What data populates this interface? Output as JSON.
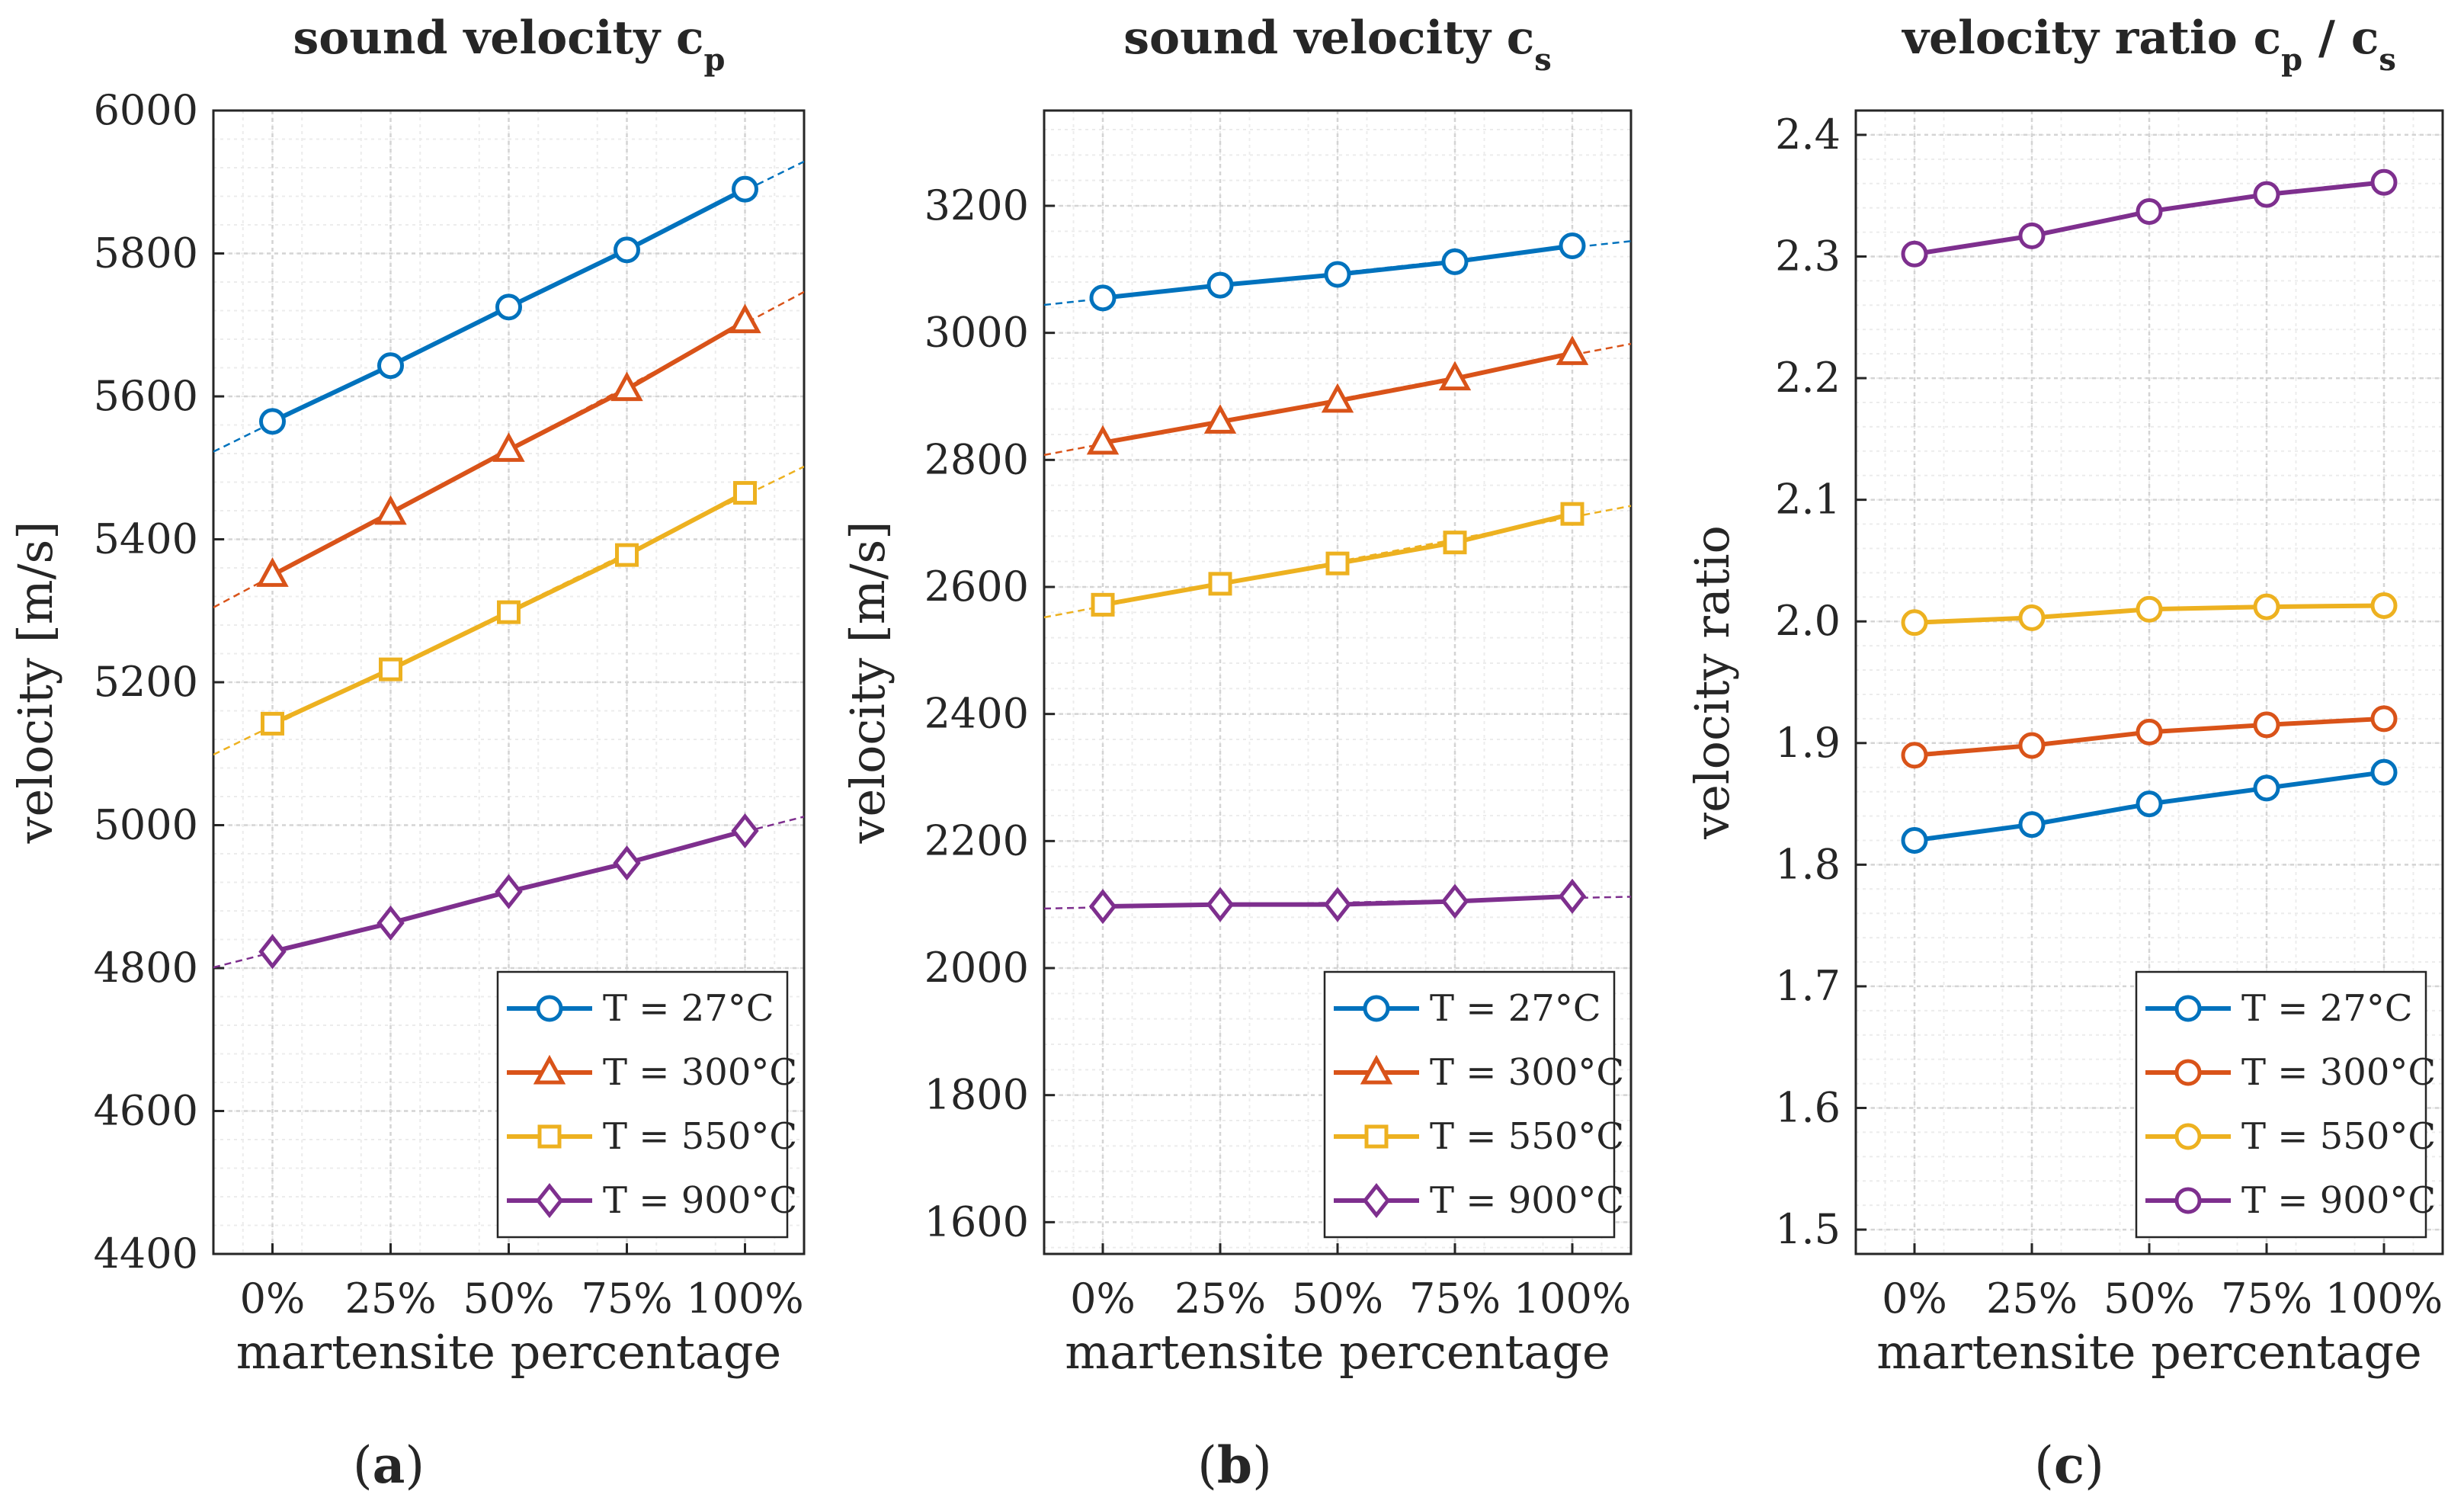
{
  "colors": {
    "T27": "#0072BD",
    "T300": "#D95319",
    "T550": "#EDB120",
    "T900": "#7E2F8E",
    "axis": "#262626",
    "grid_major": "#d4d4d4",
    "grid_minor": "#ececec"
  },
  "chart_data": [
    {
      "type": "line",
      "panel_label": "a",
      "title": "sound velocity c",
      "title_sub": "p",
      "xlabel": "martensite percentage",
      "ylabel": "velocity [m/s]",
      "categories": [
        "0%",
        "25%",
        "50%",
        "75%",
        "100%"
      ],
      "ylim": [
        4400,
        6000
      ],
      "yticks": [
        4400,
        4600,
        4800,
        5000,
        5200,
        5400,
        5600,
        5800,
        6000
      ],
      "ytick_labels": [
        "4400",
        "4600",
        "4800",
        "5000",
        "5200",
        "5400",
        "5600",
        "5800",
        "6000"
      ],
      "grid": true,
      "minor_grid": true,
      "trend_lines": true,
      "legend_loc": "bottom-right",
      "series": [
        {
          "name": "T = 27°C",
          "marker": "circle",
          "color_key": "T27",
          "values": [
            5565,
            5643,
            5725,
            5805,
            5890
          ]
        },
        {
          "name": "T = 300°C",
          "marker": "triangle",
          "color_key": "T300",
          "values": [
            5350,
            5437,
            5525,
            5610,
            5705
          ]
        },
        {
          "name": "T = 550°C",
          "marker": "square",
          "color_key": "T550",
          "values": [
            5142,
            5218,
            5298,
            5378,
            5465
          ]
        },
        {
          "name": "T = 900°C",
          "marker": "diamond",
          "color_key": "T900",
          "values": [
            4823,
            4863,
            4907,
            4947,
            4992
          ]
        }
      ]
    },
    {
      "type": "line",
      "panel_label": "b",
      "title": "sound velocity c",
      "title_sub": "s",
      "xlabel": "martensite percentage",
      "ylabel": "velocity [m/s]",
      "categories": [
        "0%",
        "25%",
        "50%",
        "75%",
        "100%"
      ],
      "ylim": [
        1550,
        3350
      ],
      "yticks": [
        1600,
        1800,
        2000,
        2200,
        2400,
        2600,
        2800,
        3000,
        3200
      ],
      "ytick_labels": [
        "1600",
        "1800",
        "2000",
        "2200",
        "2400",
        "2600",
        "2800",
        "3000",
        "3200"
      ],
      "grid": true,
      "minor_grid": true,
      "trend_lines": true,
      "legend_loc": "bottom-right",
      "series": [
        {
          "name": "T = 27°C",
          "marker": "circle",
          "color_key": "T27",
          "values": [
            3055,
            3075,
            3092,
            3112,
            3137
          ]
        },
        {
          "name": "T = 300°C",
          "marker": "triangle",
          "color_key": "T300",
          "values": [
            2827,
            2860,
            2893,
            2928,
            2968
          ]
        },
        {
          "name": "T = 550°C",
          "marker": "square",
          "color_key": "T550",
          "values": [
            2572,
            2605,
            2637,
            2670,
            2715
          ]
        },
        {
          "name": "T = 900°C",
          "marker": "diamond",
          "color_key": "T900",
          "values": [
            2097,
            2100,
            2100,
            2105,
            2113
          ]
        }
      ]
    },
    {
      "type": "line",
      "panel_label": "c",
      "title": "velocity ratio c",
      "title_sub": "p",
      "title_mid": " / c",
      "title_sub2": "s",
      "xlabel": "martensite percentage",
      "ylabel": "velocity ratio",
      "categories": [
        "0%",
        "25%",
        "50%",
        "75%",
        "100%"
      ],
      "ylim": [
        1.48,
        2.42
      ],
      "yticks": [
        1.5,
        1.6,
        1.7,
        1.8,
        1.9,
        2.0,
        2.1,
        2.2,
        2.3,
        2.4
      ],
      "ytick_labels": [
        "1.5",
        "1.6",
        "1.7",
        "1.8",
        "1.9",
        "2.0",
        "2.1",
        "2.2",
        "2.3",
        "2.4"
      ],
      "grid": true,
      "minor_grid": true,
      "trend_lines": false,
      "legend_loc": "bottom-right",
      "series": [
        {
          "name": "T = 27°C",
          "marker": "circle",
          "color_key": "T27",
          "values": [
            1.82,
            1.833,
            1.85,
            1.863,
            1.876
          ]
        },
        {
          "name": "T = 300°C",
          "marker": "circle",
          "color_key": "T300",
          "values": [
            1.89,
            1.898,
            1.909,
            1.915,
            1.92
          ]
        },
        {
          "name": "T = 550°C",
          "marker": "circle",
          "color_key": "T550",
          "values": [
            1.999,
            2.003,
            2.01,
            2.012,
            2.013
          ]
        },
        {
          "name": "T = 900°C",
          "marker": "circle",
          "color_key": "T900",
          "values": [
            2.302,
            2.317,
            2.337,
            2.351,
            2.361
          ]
        }
      ]
    }
  ]
}
